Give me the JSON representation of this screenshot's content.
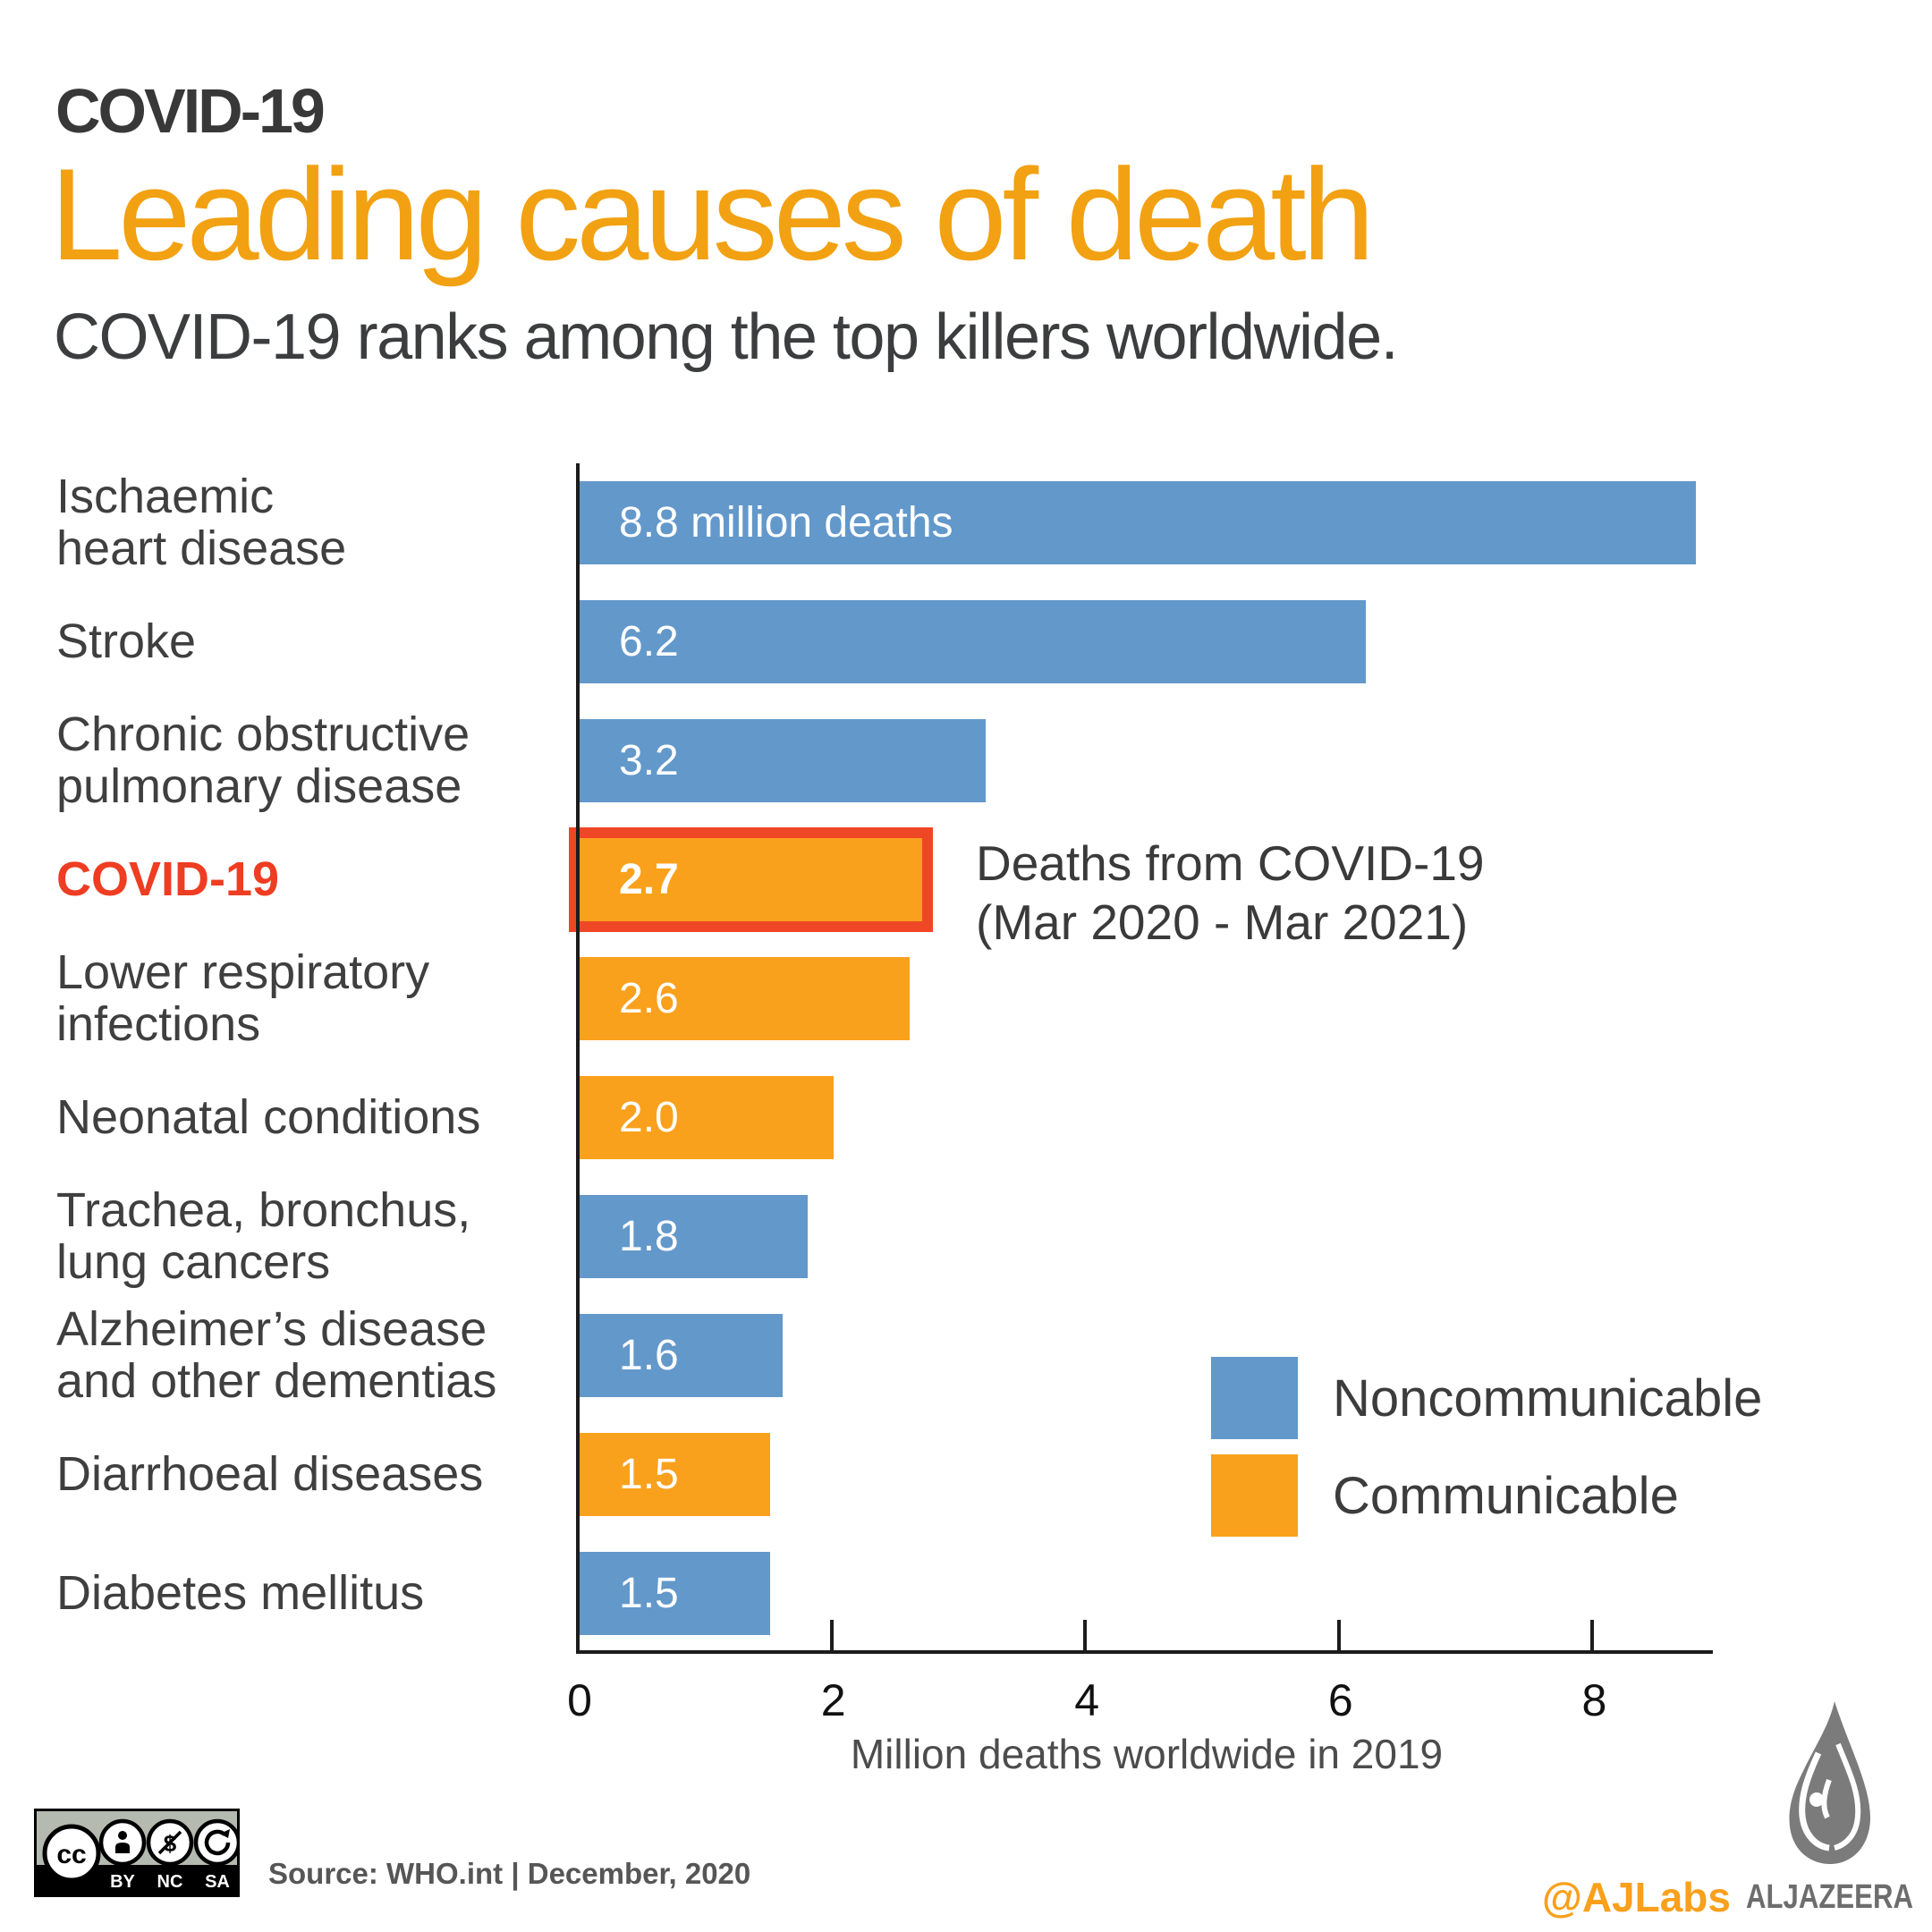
{
  "header": {
    "kicker": "COVID-19",
    "title": "Leading causes of death",
    "subtitle": "COVID-19 ranks among the top killers worldwide."
  },
  "chart_data": {
    "type": "bar",
    "orientation": "horizontal",
    "title": "Leading causes of death",
    "categories": [
      "Ischaemic heart disease",
      "Stroke",
      "Chronic obstructive pulmonary disease",
      "COVID-19",
      "Lower respiratory infections",
      "Neonatal conditions",
      "Trachea, bronchus, lung cancers",
      "Alzheimer’s disease and other dementias",
      "Diarrhoeal diseases",
      "Diabetes mellitus"
    ],
    "category_lines": [
      [
        "Ischaemic",
        "heart disease"
      ],
      [
        "Stroke"
      ],
      [
        "Chronic obstructive",
        "pulmonary disease"
      ],
      [
        "COVID-19"
      ],
      [
        "Lower respiratory",
        "infections"
      ],
      [
        "Neonatal conditions"
      ],
      [
        "Trachea, bronchus,",
        "lung cancers"
      ],
      [
        "Alzheimer’s disease",
        "and other dementias"
      ],
      [
        "Diarrhoeal diseases"
      ],
      [
        "Diabetes mellitus"
      ]
    ],
    "values": [
      8.8,
      6.2,
      3.2,
      2.7,
      2.6,
      2.0,
      1.8,
      1.6,
      1.5,
      1.5
    ],
    "bar_labels": [
      "8.8 million deaths",
      "6.2",
      "3.2",
      "2.7",
      "2.6",
      "2.0",
      "1.8",
      "1.6",
      "1.5",
      "1.5"
    ],
    "series_of": [
      "noncommunicable",
      "noncommunicable",
      "noncommunicable",
      "communicable",
      "communicable",
      "communicable",
      "noncommunicable",
      "noncommunicable",
      "communicable",
      "noncommunicable"
    ],
    "highlight_index": 3,
    "annotation": [
      "Deaths from COVID-19",
      "(Mar 2020 - Mar 2021)"
    ],
    "xticks": [
      0,
      2,
      4,
      6,
      8
    ],
    "xlim": [
      0,
      8.94
    ],
    "xlabel": "Million deaths worldwide in 2019",
    "legend": [
      {
        "label": "Noncommunicable",
        "key": "noncommunicable"
      },
      {
        "label": "Communicable",
        "key": "communicable"
      }
    ],
    "colors": {
      "noncommunicable": "#6398ca",
      "communicable": "#f9a11d",
      "highlight_border": "#ef4726",
      "highlight_label": "#ee3d22",
      "axis": "#1c1c1c"
    }
  },
  "footer": {
    "cc_labels": [
      "BY",
      "NC",
      "SA"
    ],
    "source": "Source: WHO.int  | December, 2020",
    "handle": "@AJLabs",
    "brand": "ALJAZEERA"
  }
}
